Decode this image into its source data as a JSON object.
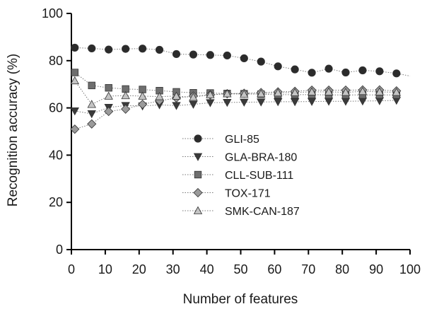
{
  "chart_data": {
    "type": "line",
    "title": "",
    "xlabel": "Number of features",
    "ylabel": "Recognition accuracy (%)",
    "xlim": [
      0,
      100
    ],
    "ylim": [
      0,
      100
    ],
    "xticks": [
      0,
      10,
      20,
      30,
      40,
      50,
      60,
      70,
      80,
      90,
      100
    ],
    "yticks": [
      0,
      20,
      40,
      60,
      80,
      100
    ],
    "grid": false,
    "legend_position": "center",
    "x": [
      1,
      6,
      11,
      16,
      21,
      26,
      31,
      36,
      41,
      46,
      51,
      56,
      61,
      66,
      71,
      76,
      81,
      86,
      91,
      96
    ],
    "series": [
      {
        "name": "GLI-85",
        "marker": "circle",
        "color": "#2b2b2b",
        "values": [
          85.5,
          85.2,
          84.7,
          85.0,
          85.1,
          84.6,
          82.8,
          82.6,
          82.4,
          82.2,
          81.0,
          79.6,
          77.6,
          76.3,
          74.9,
          76.6,
          75.0,
          75.9,
          75.5,
          74.6,
          73.5
        ],
        "x": [
          1,
          6,
          11,
          16,
          21,
          26,
          31,
          36,
          41,
          46,
          51,
          56,
          61,
          66,
          71,
          76,
          81,
          86,
          91,
          96,
          100
        ]
      },
      {
        "name": "GLA-BRA-180",
        "marker": "triangle-down",
        "color": "#3a3a3a",
        "values": [
          58.7,
          57.5,
          60.2,
          61.0,
          60.8,
          61.3,
          61.0,
          61.5,
          62.2,
          62.3,
          62.4,
          62.5,
          62.6,
          62.6,
          62.7,
          62.8,
          62.8,
          62.9,
          63.0,
          63.2
        ]
      },
      {
        "name": "CLL-SUB-111",
        "marker": "square",
        "color": "#6e6e6e",
        "values": [
          75.0,
          69.5,
          68.5,
          68.0,
          67.8,
          67.3,
          66.8,
          66.4,
          66.3,
          66.1,
          66.0,
          65.8,
          65.6,
          65.6,
          65.6,
          65.5,
          65.5,
          65.5,
          65.5,
          65.5
        ]
      },
      {
        "name": "TOX-171",
        "marker": "diamond",
        "color": "#9a9a9a",
        "values": [
          51.0,
          53.2,
          58.5,
          59.5,
          61.5,
          63.0,
          64.2,
          65.0,
          65.5,
          66.0,
          66.2,
          66.5,
          66.8,
          67.0,
          67.5,
          67.5,
          67.5,
          67.6,
          67.6,
          67.2
        ]
      },
      {
        "name": "SMK-CAN-187",
        "marker": "triangle-up",
        "color": "#c4c4c4",
        "values": [
          71.5,
          61.5,
          65.0,
          65.2,
          65.0,
          64.8,
          65.0,
          64.5,
          65.6,
          66.0,
          65.8,
          66.0,
          66.4,
          66.5,
          66.8,
          66.8,
          66.6,
          67.0,
          66.8,
          66.6
        ]
      }
    ]
  }
}
